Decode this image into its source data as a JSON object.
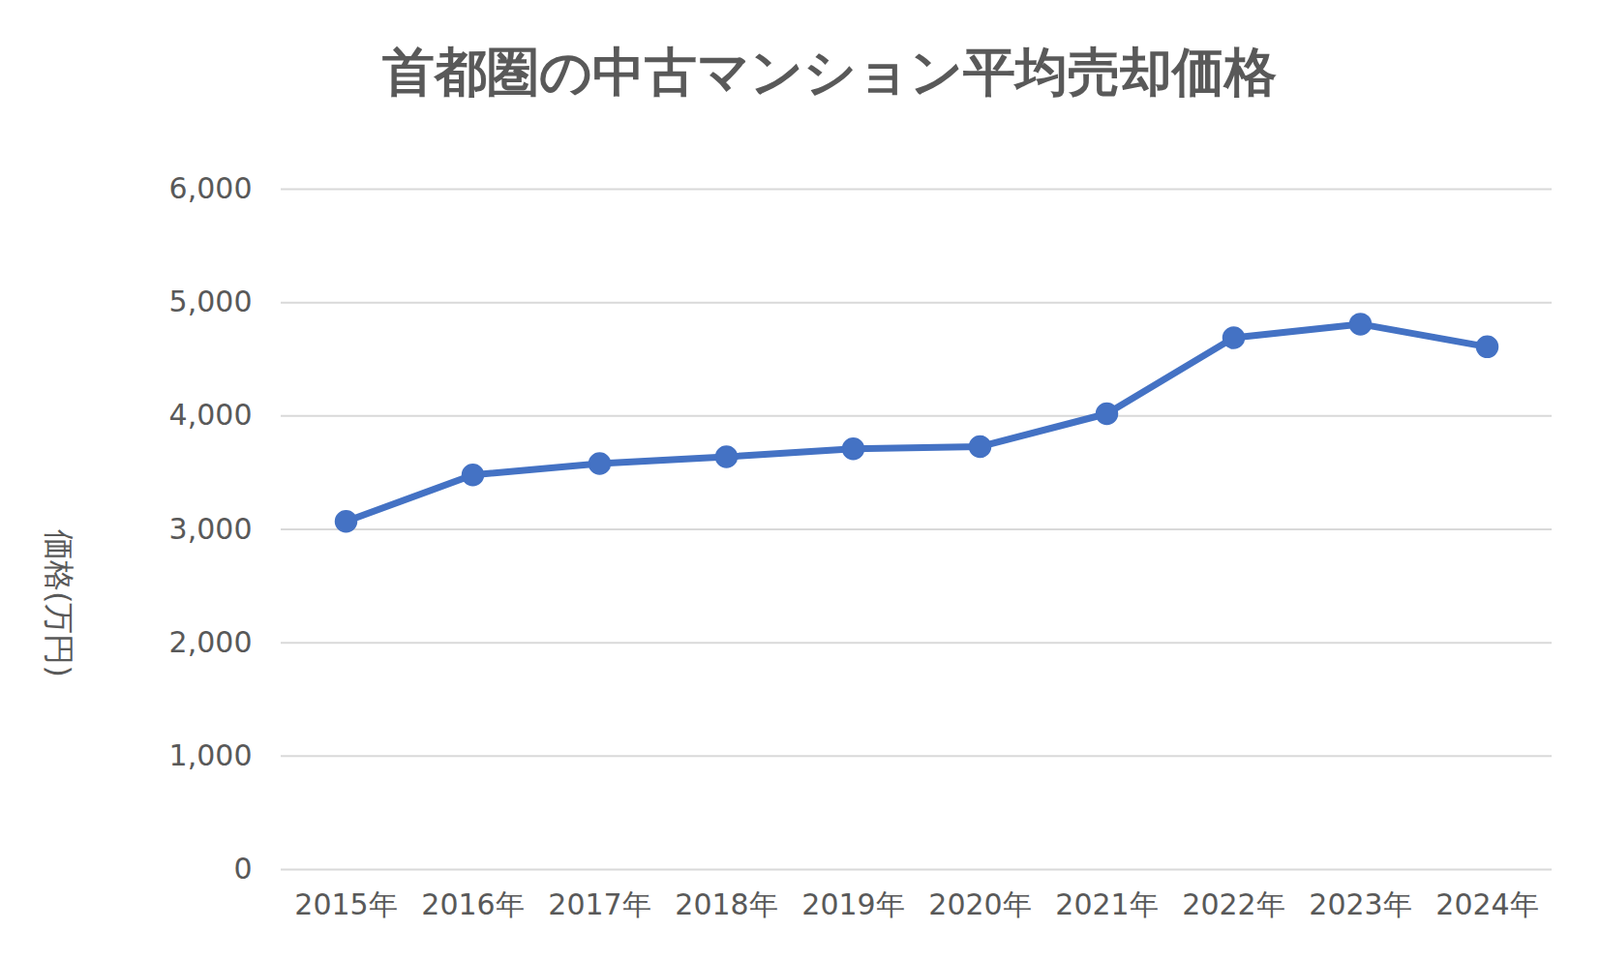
{
  "chart_data": {
    "type": "line",
    "title": "首都圏の中古マンション平均売却価格",
    "y_label": "価格(万円)",
    "categories": [
      "2015年",
      "2016年",
      "2017年",
      "2018年",
      "2019年",
      "2020年",
      "2021年",
      "2022年",
      "2023年",
      "2024年"
    ],
    "values": [
      3070,
      3480,
      3580,
      3640,
      3710,
      3730,
      4020,
      4690,
      4810,
      4610
    ],
    "color": "#4472c4",
    "marker": "circle",
    "ylim": [
      0,
      6000
    ],
    "yticks": [
      0,
      {
        "value": 1000,
        "label": "1,000"
      },
      {
        "value": 2000,
        "label": "2,000"
      },
      {
        "value": 3000,
        "label": "3,000"
      },
      {
        "value": 4000,
        "label": "4,000"
      },
      {
        "value": 5000,
        "label": "5,000"
      },
      {
        "value": 6000,
        "label": "6,000"
      }
    ],
    "grid": true
  }
}
